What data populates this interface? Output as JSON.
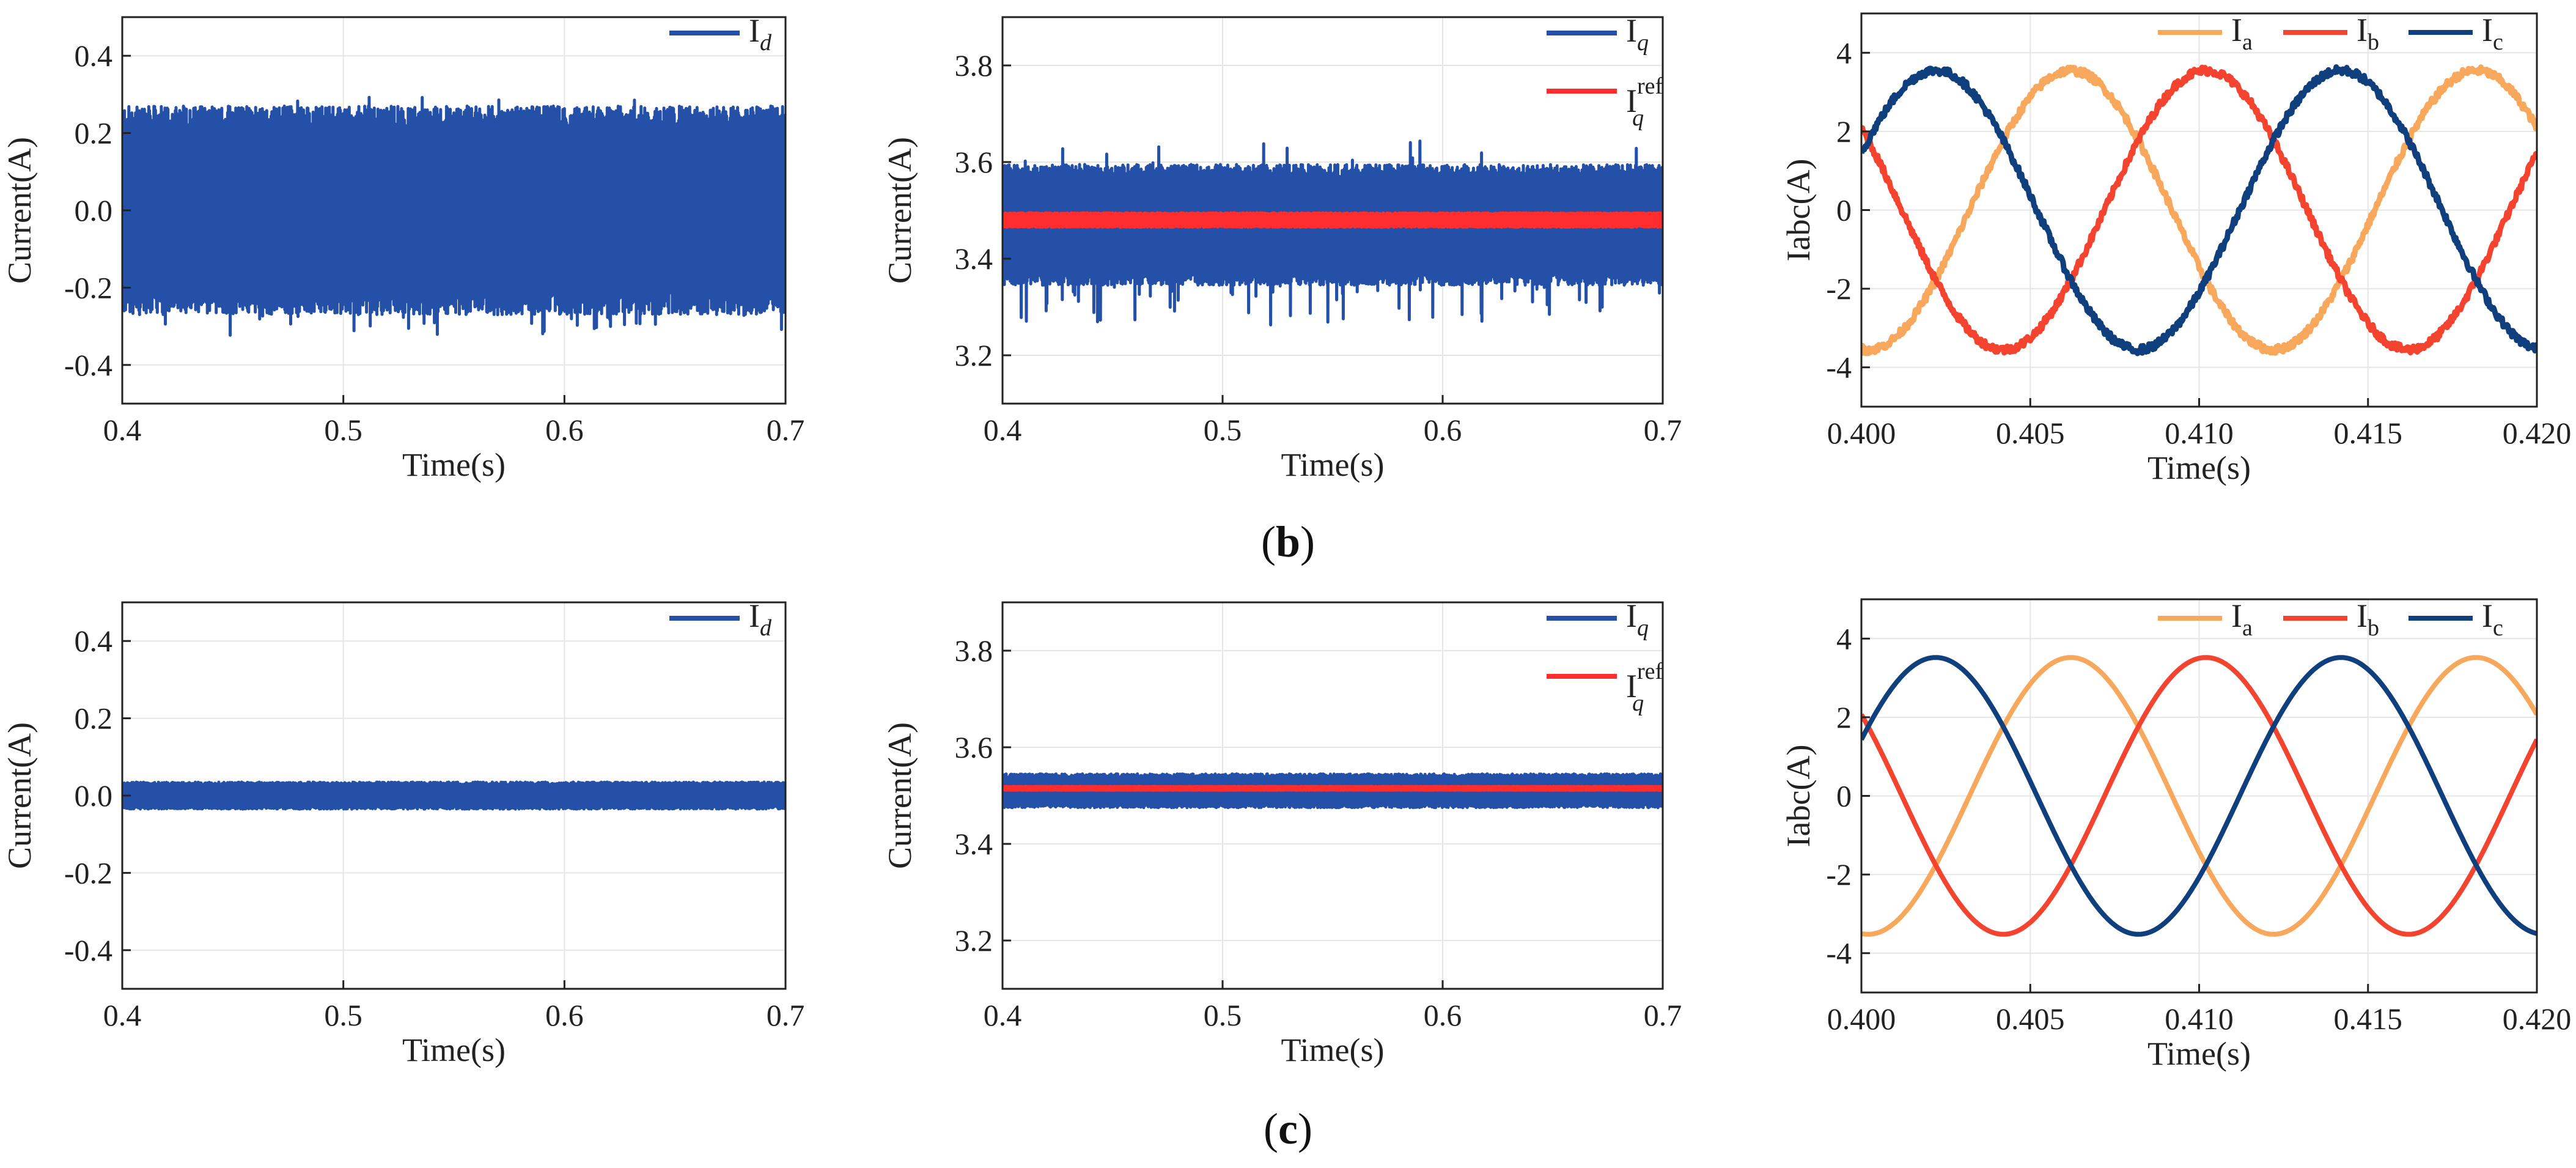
{
  "captions": {
    "b": "b",
    "c": "c"
  },
  "colors": {
    "d": "#2550a8",
    "q": "#2550a8",
    "qref": "#ff2d2d",
    "a": "#f8a85c",
    "b": "#f4432f",
    "c": "#0f3f7d"
  },
  "chart_data": [
    {
      "id": "b-id",
      "type": "line",
      "xlabel": "Time(s)",
      "ylabel": "Current(A)",
      "xlim": [
        0.4,
        0.7
      ],
      "ylim": [
        -0.5,
        0.5
      ],
      "xticks": [
        0.4,
        0.5,
        0.6,
        0.7
      ],
      "xticklabels": [
        "0.4",
        "0.5",
        "0.6",
        "0.7"
      ],
      "yticks": [
        -0.4,
        -0.2,
        0.0,
        0.2,
        0.4
      ],
      "yticklabels": [
        "-0.4",
        "-0.2",
        "0.0",
        "0.2",
        "0.4"
      ],
      "series": [
        {
          "name": "Id",
          "sym": "I",
          "sub": "d",
          "color": "#2550a8",
          "kind": "band",
          "center": 0.0,
          "amp": 0.27,
          "spike": 0.06
        }
      ]
    },
    {
      "id": "b-iq",
      "type": "line",
      "xlabel": "Time(s)",
      "ylabel": "Current(A)",
      "xlim": [
        0.4,
        0.7
      ],
      "ylim": [
        3.1,
        3.9
      ],
      "xticks": [
        0.4,
        0.5,
        0.6,
        0.7
      ],
      "xticklabels": [
        "0.4",
        "0.5",
        "0.6",
        "0.7"
      ],
      "yticks": [
        3.2,
        3.4,
        3.6,
        3.8
      ],
      "yticklabels": [
        "3.2",
        "3.4",
        "3.6",
        "3.8"
      ],
      "series": [
        {
          "name": "Iq",
          "sym": "I",
          "sub": "q",
          "color": "#2550a8",
          "kind": "band",
          "center": 3.47,
          "amp": 0.125,
          "spike": 0.09
        },
        {
          "name": "Iq ref",
          "sym": "I",
          "sub": "q",
          "sup": "ref",
          "color": "#ff2d2d",
          "kind": "band",
          "center": 3.48,
          "amp": 0.015,
          "spike": 0.0
        }
      ]
    },
    {
      "id": "b-iabc",
      "type": "line",
      "xlabel": "Time(s)",
      "ylabel": "Iabc(A)",
      "xlim": [
        0.4,
        0.42
      ],
      "ylim": [
        -5,
        5
      ],
      "xticks": [
        0.4,
        0.405,
        0.41,
        0.415,
        0.42
      ],
      "xticklabels": [
        "0.400",
        "0.405",
        "0.410",
        "0.415",
        "0.420"
      ],
      "yticks": [
        -4,
        -2,
        0,
        2,
        4
      ],
      "yticklabels": [
        "-4",
        "-2",
        "0",
        "2",
        "4"
      ],
      "series": [
        {
          "name": "Ia",
          "sym": "I",
          "sub": "a",
          "color": "#f8a85c",
          "kind": "sine",
          "amp": 3.55,
          "peak": 0.4062,
          "period": 0.012,
          "noise": 0.1
        },
        {
          "name": "Ib",
          "sym": "I",
          "sub": "b",
          "color": "#f4432f",
          "kind": "sine",
          "amp": 3.55,
          "peak": 0.4102,
          "period": 0.012,
          "noise": 0.1
        },
        {
          "name": "Ic",
          "sym": "I",
          "sub": "c",
          "color": "#0f3f7d",
          "kind": "sine",
          "amp": 3.55,
          "peak": 0.4022,
          "period": 0.012,
          "noise": 0.1
        }
      ]
    },
    {
      "id": "c-id",
      "type": "line",
      "xlabel": "Time(s)",
      "ylabel": "Current(A)",
      "xlim": [
        0.4,
        0.7
      ],
      "ylim": [
        -0.5,
        0.5
      ],
      "xticks": [
        0.4,
        0.5,
        0.6,
        0.7
      ],
      "xticklabels": [
        "0.4",
        "0.5",
        "0.6",
        "0.7"
      ],
      "yticks": [
        -0.4,
        -0.2,
        0.0,
        0.2,
        0.4
      ],
      "yticklabels": [
        "-0.4",
        "-0.2",
        "0.0",
        "0.2",
        "0.4"
      ],
      "series": [
        {
          "name": "Id",
          "sym": "I",
          "sub": "d",
          "color": "#2550a8",
          "kind": "band",
          "center": 0.0,
          "amp": 0.035,
          "spike": 0.0
        }
      ]
    },
    {
      "id": "c-iq",
      "type": "line",
      "xlabel": "Time(s)",
      "ylabel": "Current(A)",
      "xlim": [
        0.4,
        0.7
      ],
      "ylim": [
        3.1,
        3.9
      ],
      "xticks": [
        0.4,
        0.5,
        0.6,
        0.7
      ],
      "xticklabels": [
        "0.4",
        "0.5",
        "0.6",
        "0.7"
      ],
      "yticks": [
        3.2,
        3.4,
        3.6,
        3.8
      ],
      "yticklabels": [
        "3.2",
        "3.4",
        "3.6",
        "3.8"
      ],
      "series": [
        {
          "name": "Iq",
          "sym": "I",
          "sub": "q",
          "color": "#2550a8",
          "kind": "band",
          "center": 3.51,
          "amp": 0.035,
          "spike": 0.0
        },
        {
          "name": "Iq ref",
          "sym": "I",
          "sub": "q",
          "sup": "ref",
          "color": "#ff2d2d",
          "kind": "band",
          "center": 3.515,
          "amp": 0.004,
          "spike": 0.0
        }
      ]
    },
    {
      "id": "c-iabc",
      "type": "line",
      "xlabel": "Time(s)",
      "ylabel": "Iabc(A)",
      "xlim": [
        0.4,
        0.42
      ],
      "ylim": [
        -5,
        5
      ],
      "xticks": [
        0.4,
        0.405,
        0.41,
        0.415,
        0.42
      ],
      "xticklabels": [
        "0.400",
        "0.405",
        "0.410",
        "0.415",
        "0.420"
      ],
      "yticks": [
        -4,
        -2,
        0,
        2,
        4
      ],
      "yticklabels": [
        "-4",
        "-2",
        "0",
        "2",
        "4"
      ],
      "series": [
        {
          "name": "Ia",
          "sym": "I",
          "sub": "a",
          "color": "#f8a85c",
          "kind": "sine",
          "amp": 3.52,
          "peak": 0.4062,
          "period": 0.012,
          "noise": 0.0
        },
        {
          "name": "Ib",
          "sym": "I",
          "sub": "b",
          "color": "#f4432f",
          "kind": "sine",
          "amp": 3.52,
          "peak": 0.4102,
          "period": 0.012,
          "noise": 0.0
        },
        {
          "name": "Ic",
          "sym": "I",
          "sub": "c",
          "color": "#0f3f7d",
          "kind": "sine",
          "amp": 3.52,
          "peak": 0.4022,
          "period": 0.012,
          "noise": 0.0
        }
      ]
    }
  ]
}
